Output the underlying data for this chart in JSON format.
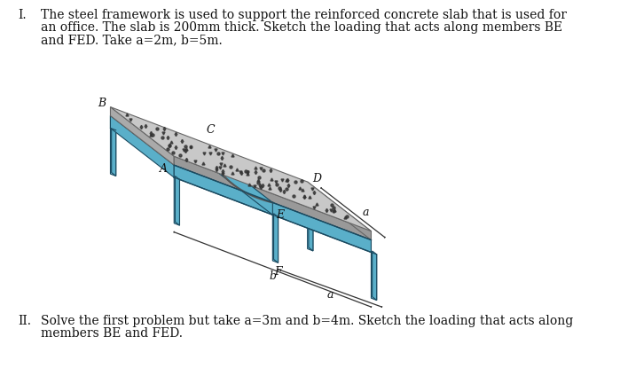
{
  "title_I": "I.",
  "title_II": "II.",
  "text_I_line1": "The steel framework is used to support the reinforced concrete slab that is used for",
  "text_I_line2": "an office. The slab is 200mm thick. Sketch the loading that acts along members BE",
  "text_I_line3": "and FED. Take a=2m, b=5m.",
  "text_II_line1": "Solve the first problem but take a=3m and b=4m. Sketch the loading that acts along",
  "text_II_line2": "members BE and FED.",
  "bg_color": "#ffffff",
  "text_color": "#111111",
  "steel_light": "#7ec8e3",
  "steel_mid": "#5aafc9",
  "steel_dark": "#2a6a85",
  "steel_vdark": "#1a4a60",
  "slab_top": "#c8c8c8",
  "slab_edge": "#888888",
  "frame_inner": "#d0e8f0",
  "label_C": "C",
  "label_B": "B",
  "label_D": "D",
  "label_A": "A",
  "label_E": "E",
  "label_F": "F",
  "label_a": "a",
  "label_b": "b"
}
